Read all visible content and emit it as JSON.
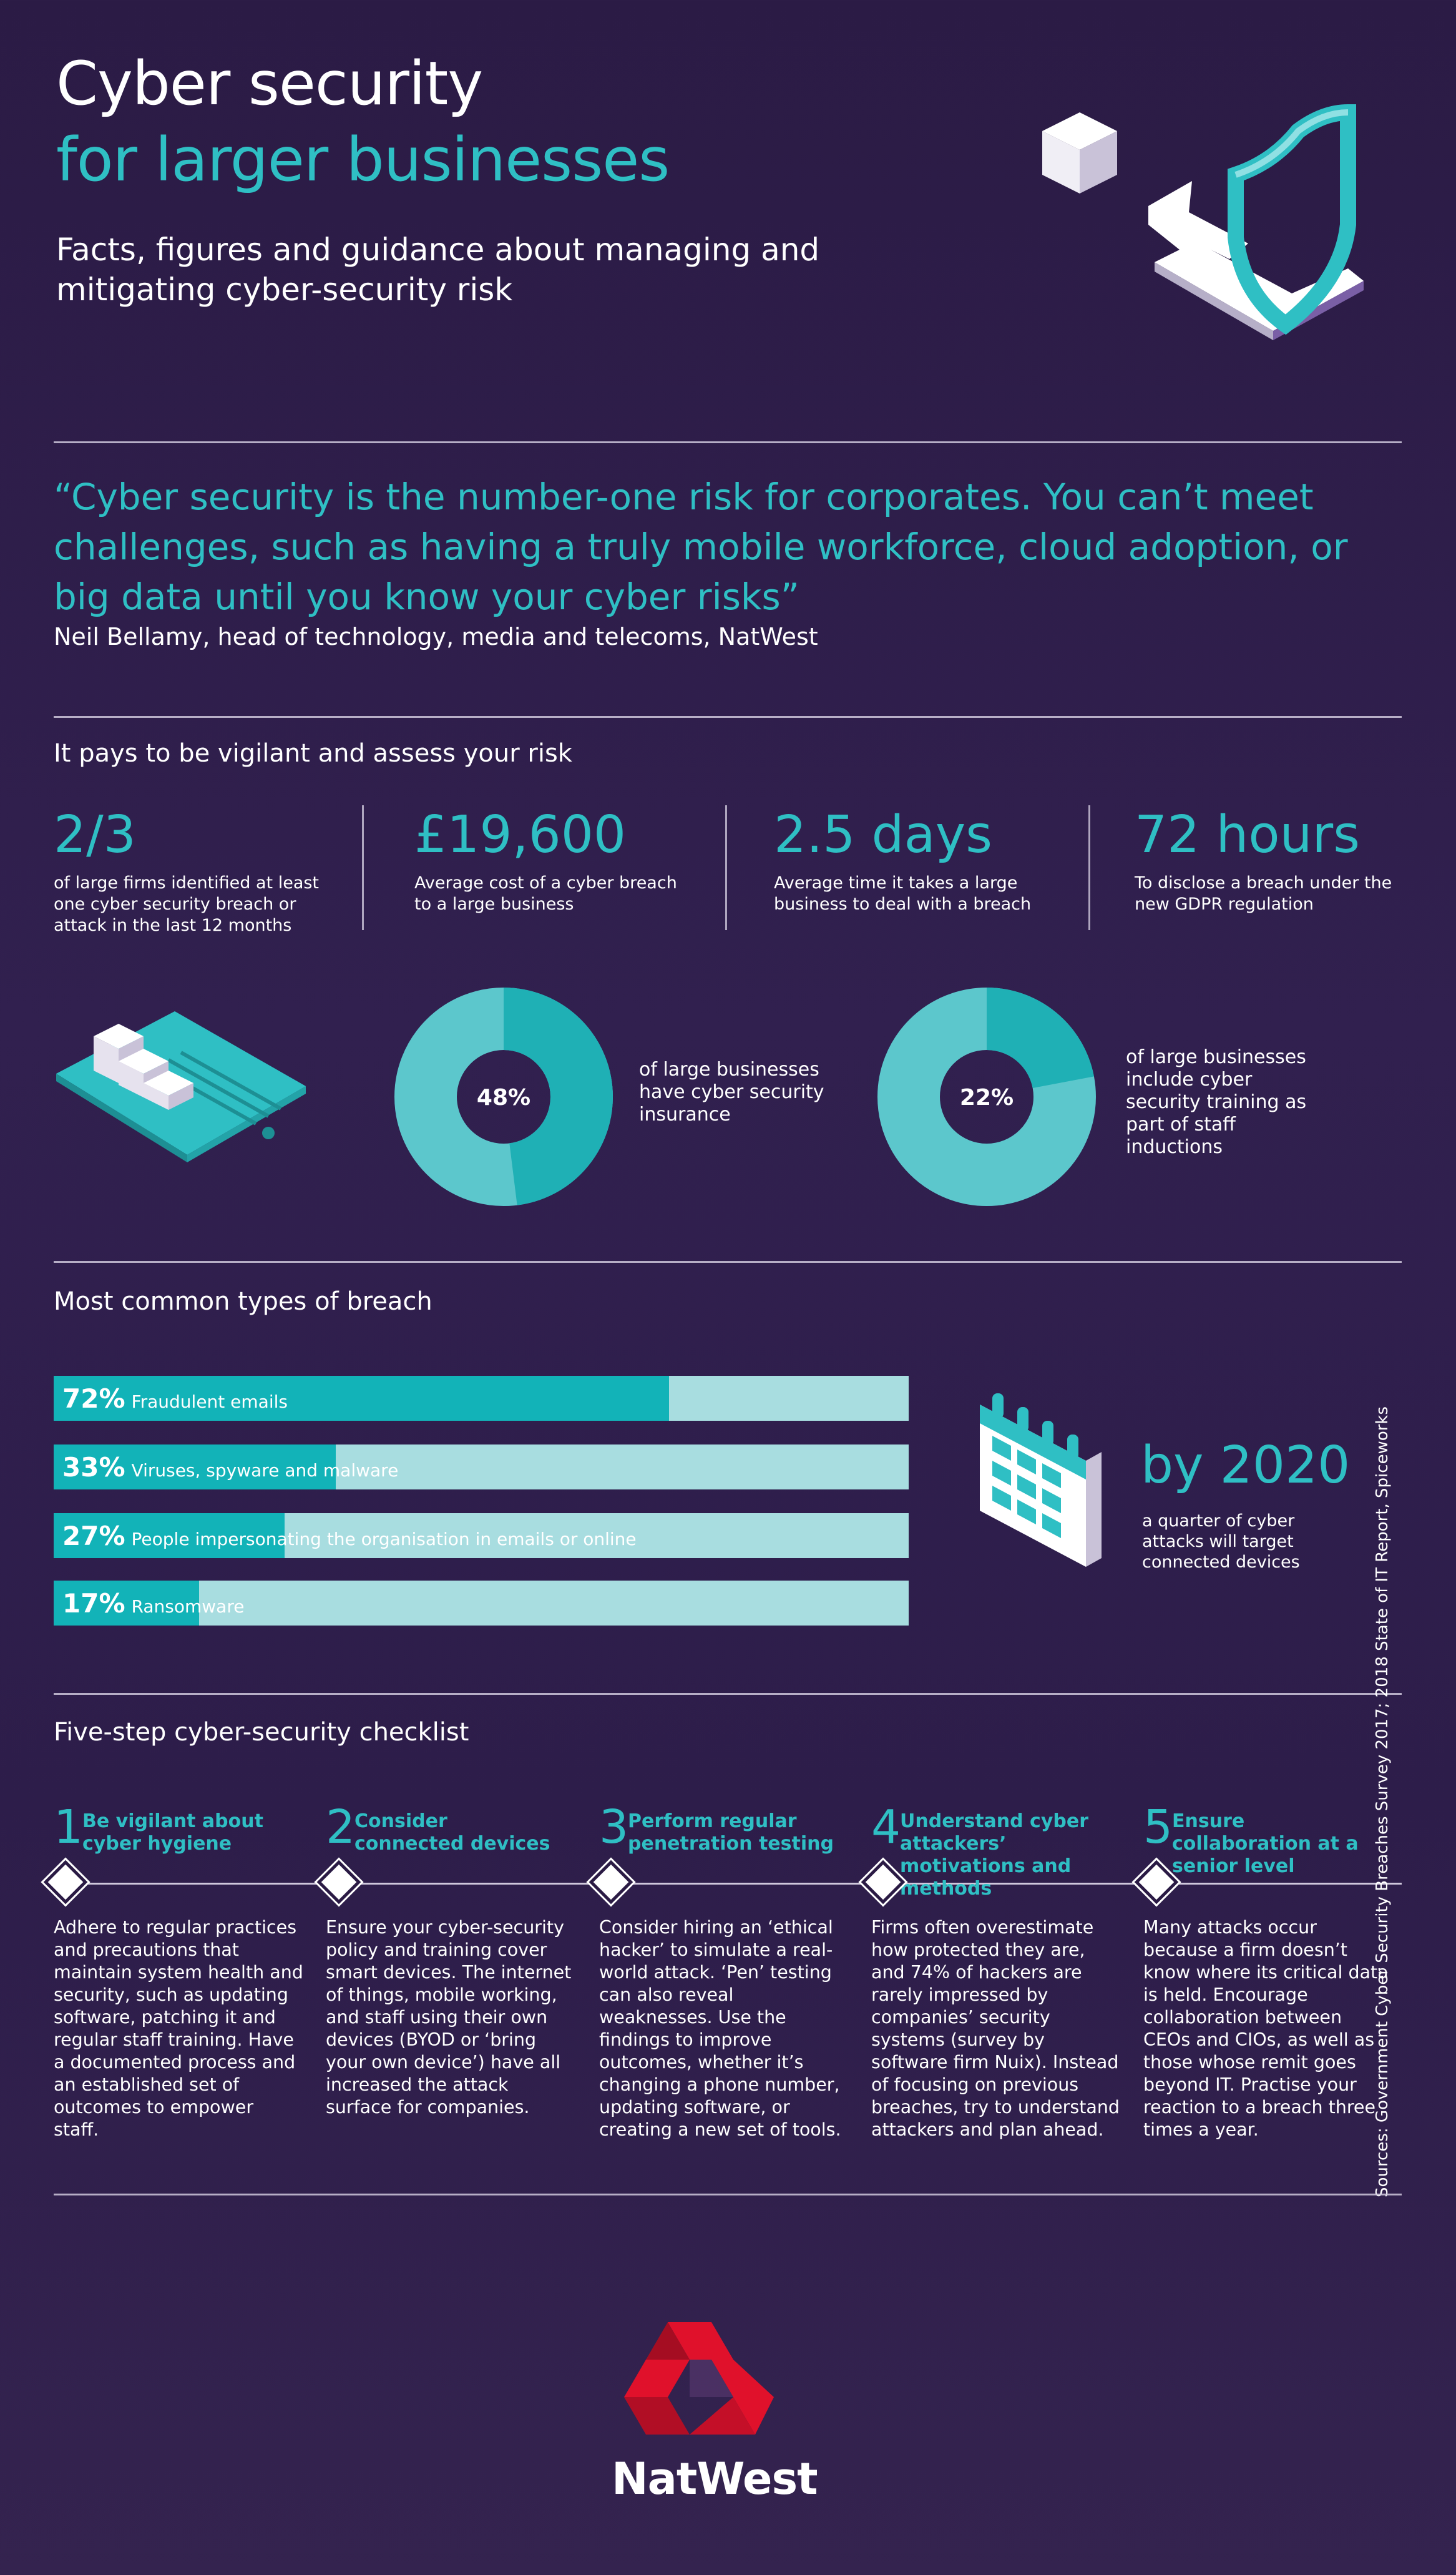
{
  "header": {
    "title_line1": "Cyber security",
    "title_line2": "for larger businesses",
    "subtitle": "Facts, figures and guidance about managing and mitigating cyber-security risk"
  },
  "quote": {
    "text": "“Cyber security is the number-one risk for corporates. You can’t meet challenges, such as having a truly mobile workforce, cloud adoption, or big data until you know your cyber risks”",
    "author": "Neil Bellamy, head of technology, media and telecoms, NatWest"
  },
  "vigilant": {
    "heading": "It pays to be vigilant and assess your risk",
    "stats": [
      {
        "big": "2/3",
        "small": "of large firms identified at least one cyber security breach or attack in the last 12 months"
      },
      {
        "big": "£19,600",
        "small": "Average cost of a cyber breach to a large business"
      },
      {
        "big": "2.5 days",
        "small": "Average time it takes a large business to deal with a breach"
      },
      {
        "big": "72 hours",
        "small": "To disclose a breach under the new GDPR regulation"
      }
    ],
    "donuts": [
      {
        "percent_label": "48%",
        "value": 48,
        "text": "of large businesses have cyber security insurance"
      },
      {
        "percent_label": "22%",
        "value": 22,
        "text": "of large businesses include cyber security training as part of staff inductions"
      }
    ]
  },
  "breaches": {
    "heading": "Most common types of breach",
    "items": [
      {
        "pct_label": "72%",
        "value": 72,
        "label": "Fraudulent emails"
      },
      {
        "pct_label": "33%",
        "value": 33,
        "label": "Viruses, spyware and malware"
      },
      {
        "pct_label": "27%",
        "value": 27,
        "label": "People impersonating the organisation in emails or online"
      },
      {
        "pct_label": "17%",
        "value": 17,
        "label": "Ransomware"
      }
    ],
    "by2020_title": "by 2020",
    "by2020_text": "a quarter of cyber attacks will target connected devices"
  },
  "checklist": {
    "heading": "Five-step cyber-security checklist",
    "steps": [
      {
        "num": "1",
        "title": "Be vigilant about cyber hygiene",
        "body": "Adhere to regular practices and precautions that maintain system health and security, such as updating software, patching it and regular staff training. Have a documented process and an established set of outcomes to empower staff."
      },
      {
        "num": "2",
        "title": "Consider connected devices",
        "body": "Ensure your cyber-security policy and training cover smart devices. The internet of things, mobile working, and staff using their own devices (BYOD or ‘bring your own device’) have all increased the attack surface for companies."
      },
      {
        "num": "3",
        "title": "Perform regular penetration testing",
        "body": "Consider hiring an ‘ethical hacker’ to simulate a real-world attack. ‘Pen’ testing can also reveal weaknesses. Use the findings to improve outcomes, whether it’s changing a phone number, updating software, or creating a new set of tools."
      },
      {
        "num": "4",
        "title": "Understand cyber attackers’ motivations and methods",
        "body": "Firms often overestimate how protected they are, and 74% of hackers are rarely impressed by companies’ security systems (survey by software firm Nuix). Instead of focusing on previous breaches, try to understand attackers and plan ahead."
      },
      {
        "num": "5",
        "title": "Ensure collaboration at a senior level",
        "body": "Many attacks occur because a firm doesn’t know where its critical data is held. Encourage collaboration between CEOs and CIOs, as well as those whose remit goes beyond IT. Practise your reaction to a breach three times a year."
      }
    ]
  },
  "sources": "Sources: Government Cyber Security Breaches Survey 2017; 2018 State of IT Report, Spiceworks",
  "logo": {
    "text": "NatWest"
  },
  "colors": {
    "teal": "#2fbfc4",
    "bar_fill": "#12b3b8",
    "bar_bg": "#a8dde0",
    "logo_red": "#e0112b"
  }
}
